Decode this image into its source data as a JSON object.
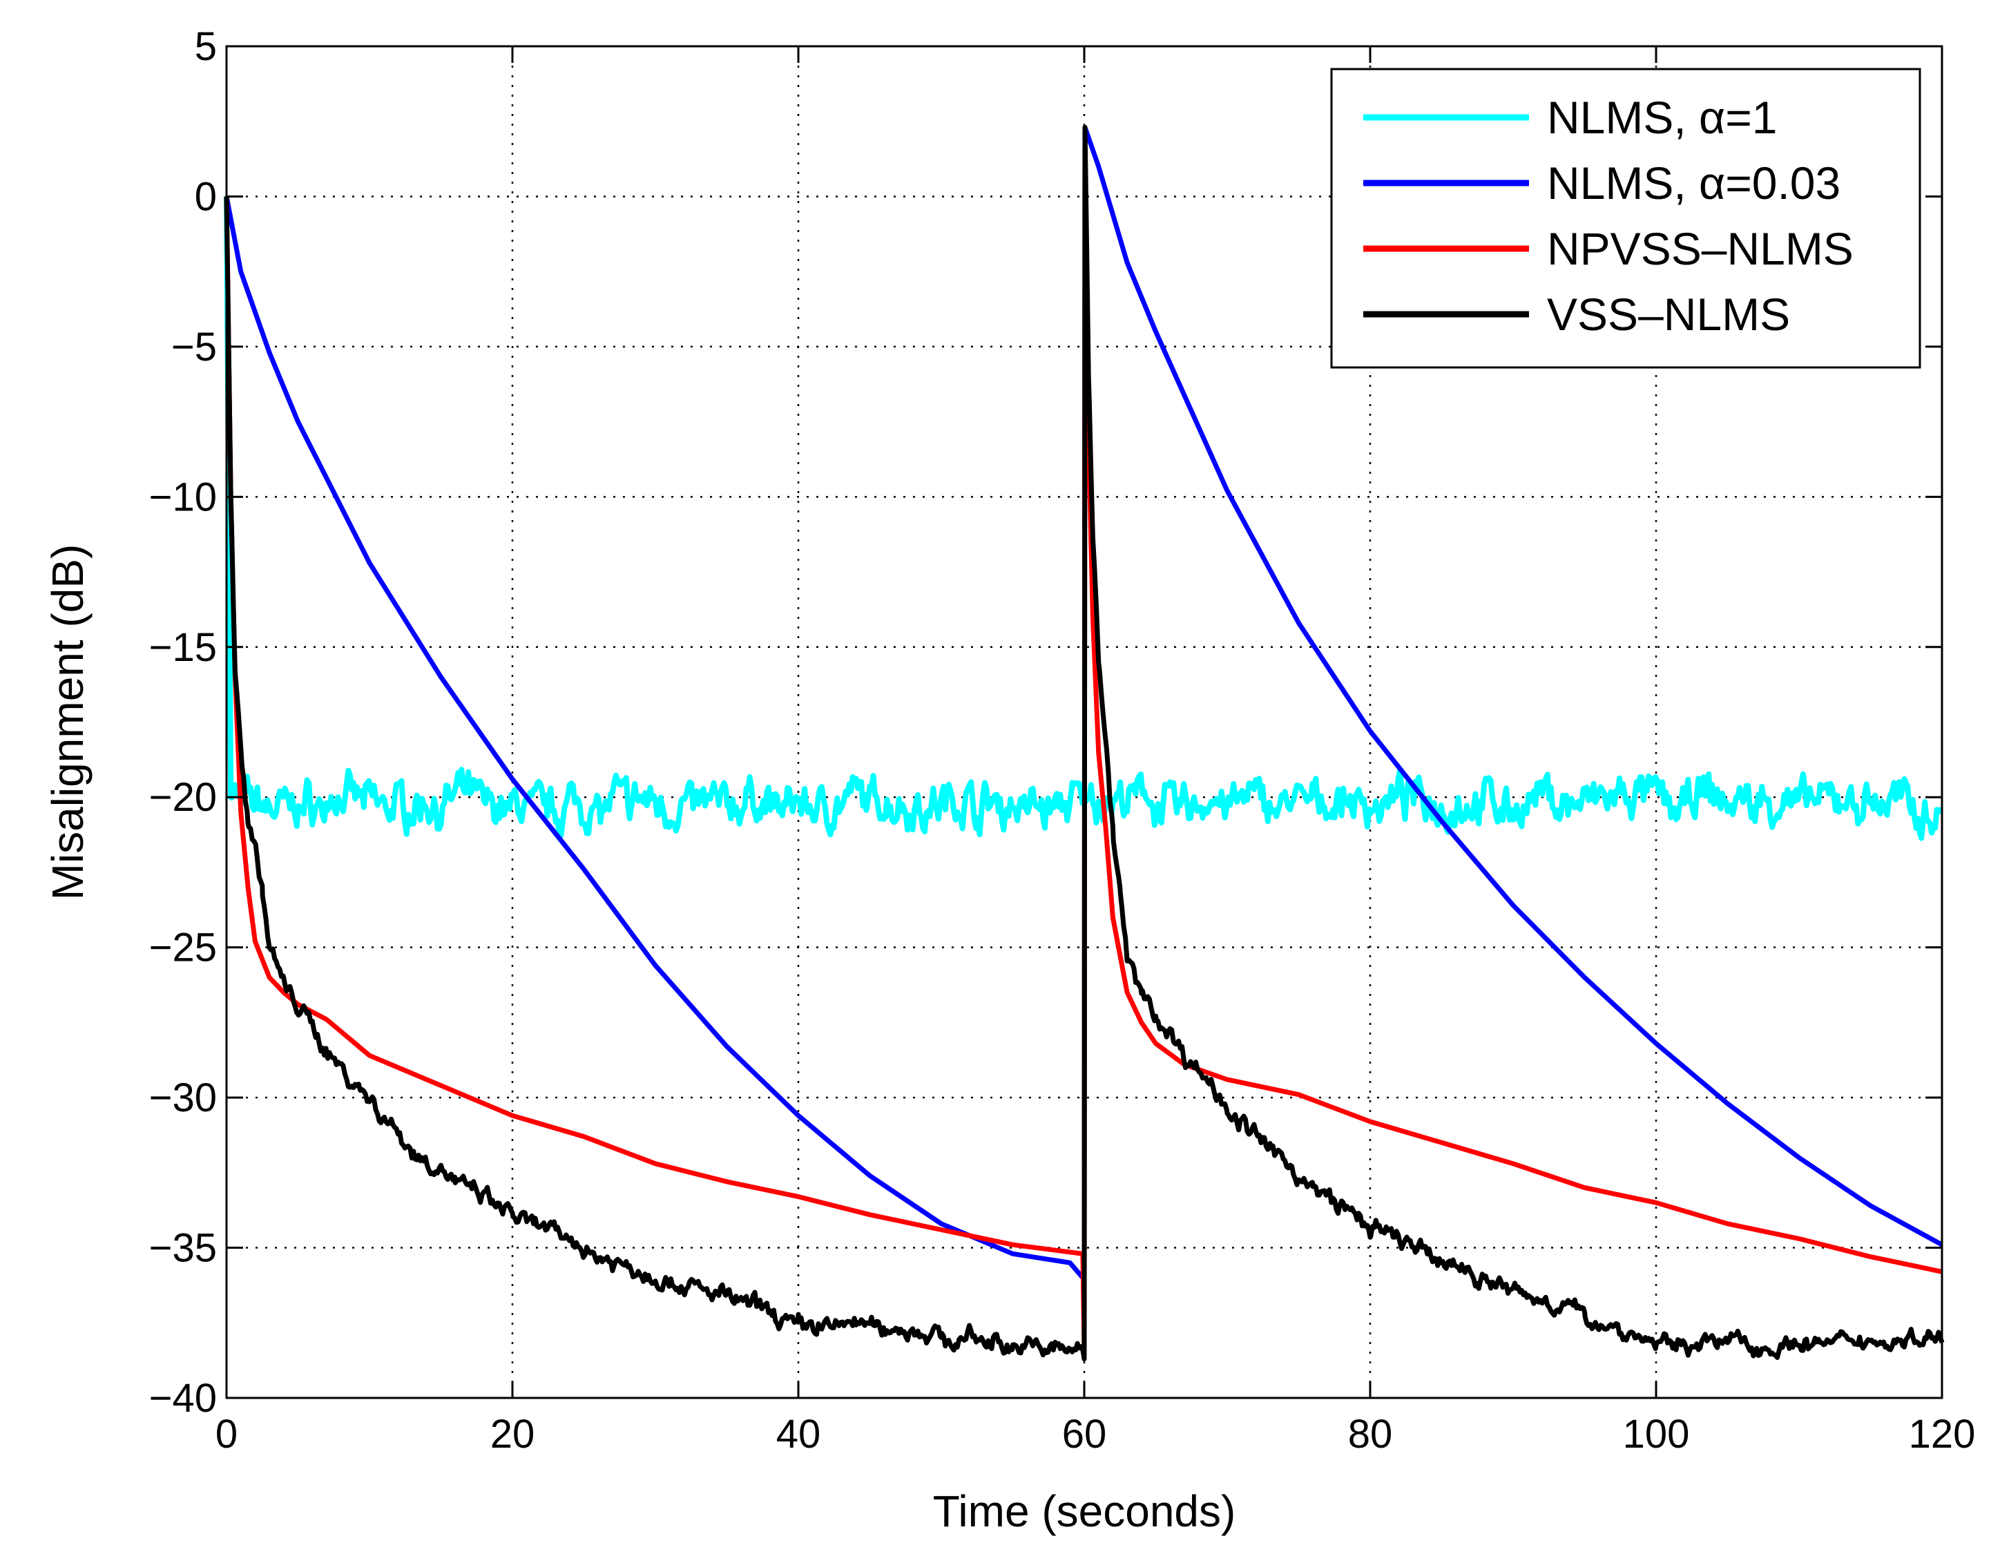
{
  "chart_data": {
    "type": "line",
    "title": "",
    "xlabel": "Time (seconds)",
    "ylabel": "Misalignment (dB)",
    "xlim": [
      0,
      120
    ],
    "ylim": [
      -40,
      5
    ],
    "xticks": [
      0,
      20,
      40,
      60,
      80,
      100,
      120
    ],
    "yticks": [
      5,
      0,
      -5,
      -10,
      -15,
      -20,
      -25,
      -30,
      -35,
      -40
    ],
    "xtick_labels": [
      "0",
      "20",
      "40",
      "60",
      "80",
      "100",
      "120"
    ],
    "ytick_labels": [
      "5",
      "0",
      "−5",
      "−10",
      "−15",
      "−20",
      "−25",
      "−30",
      "−35",
      "−40"
    ],
    "grid": true,
    "legend_position": "top-right",
    "series": [
      {
        "name": "NLMS, α=1",
        "color": "#00ffff",
        "style": "noisy",
        "noise_amplitude": 0.7,
        "x": [
          0,
          0.3,
          1,
          60,
          60.3,
          61,
          120
        ],
        "y": [
          0,
          -20,
          -20.2,
          -20.2,
          -20,
          -20.2,
          -20.2
        ]
      },
      {
        "name": "NLMS, α=0.03",
        "color": "#0000ff",
        "style": "smooth",
        "x": [
          0,
          1,
          3,
          5,
          10,
          15,
          20,
          25,
          30,
          35,
          40,
          45,
          50,
          55,
          59,
          59.9,
          60,
          60.05,
          61,
          63,
          65,
          70,
          75,
          80,
          85,
          90,
          95,
          100,
          105,
          110,
          115,
          120
        ],
        "y": [
          0,
          -2.5,
          -5.2,
          -7.5,
          -12.2,
          -16,
          -19.4,
          -22.4,
          -25.6,
          -28.3,
          -30.6,
          -32.6,
          -34.2,
          -35.2,
          -35.5,
          -36,
          -36,
          2.3,
          1,
          -2.2,
          -4.5,
          -9.8,
          -14.2,
          -17.8,
          -20.8,
          -23.6,
          -26,
          -28.2,
          -30.2,
          -32,
          -33.6,
          -34.9
        ]
      },
      {
        "name": "NPVSS–NLMS",
        "color": "#ff0000",
        "style": "smooth",
        "x": [
          0,
          0.3,
          0.6,
          1,
          1.5,
          2,
          3,
          4,
          5,
          7,
          10,
          15,
          20,
          25,
          30,
          35,
          40,
          45,
          50,
          55,
          59.9,
          60,
          60.05,
          60.3,
          60.6,
          61,
          61.5,
          62,
          63,
          64,
          65,
          67,
          70,
          75,
          80,
          85,
          90,
          95,
          100,
          105,
          110,
          115,
          120
        ],
        "y": [
          0,
          -10,
          -16,
          -20.5,
          -23,
          -24.8,
          -26,
          -26.5,
          -26.9,
          -27.4,
          -28.6,
          -29.6,
          -30.6,
          -31.3,
          -32.2,
          -32.8,
          -33.3,
          -33.9,
          -34.4,
          -34.9,
          -35.2,
          -38.5,
          2,
          -8,
          -14,
          -18.5,
          -21,
          -24,
          -26.5,
          -27.5,
          -28.2,
          -28.9,
          -29.4,
          -29.9,
          -30.8,
          -31.5,
          -32.2,
          -33,
          -33.5,
          -34.2,
          -34.7,
          -35.3,
          -35.8
        ]
      },
      {
        "name": "VSS–NLMS",
        "color": "#000000",
        "style": "noisy",
        "noise_amplitude": 0.3,
        "x": [
          0,
          0.3,
          0.6,
          1,
          1.5,
          2,
          2.5,
          3,
          4,
          5,
          7,
          10,
          13,
          16,
          20,
          25,
          30,
          35,
          40,
          45,
          50,
          55,
          59.9,
          60,
          60.05,
          60.3,
          60.6,
          61,
          61.5,
          62,
          62.5,
          63,
          64,
          65,
          67,
          70,
          73,
          76,
          80,
          85,
          90,
          95,
          100,
          105,
          110,
          115,
          120
        ],
        "y": [
          0,
          -10,
          -15.5,
          -18.5,
          -20.5,
          -21.5,
          -23,
          -25,
          -26.3,
          -27,
          -28.4,
          -30,
          -31.8,
          -32.8,
          -34,
          -35,
          -36,
          -36.6,
          -37.5,
          -37.5,
          -38,
          -38.2,
          -38.4,
          -38.7,
          2.3,
          -6,
          -11,
          -15,
          -18,
          -21,
          -23,
          -25.5,
          -26.5,
          -27.2,
          -28.6,
          -30.2,
          -31.8,
          -33,
          -34.3,
          -35.5,
          -36.4,
          -37.3,
          -38.2,
          -38.1,
          -38.3,
          -38.2,
          -37.9
        ]
      }
    ]
  }
}
